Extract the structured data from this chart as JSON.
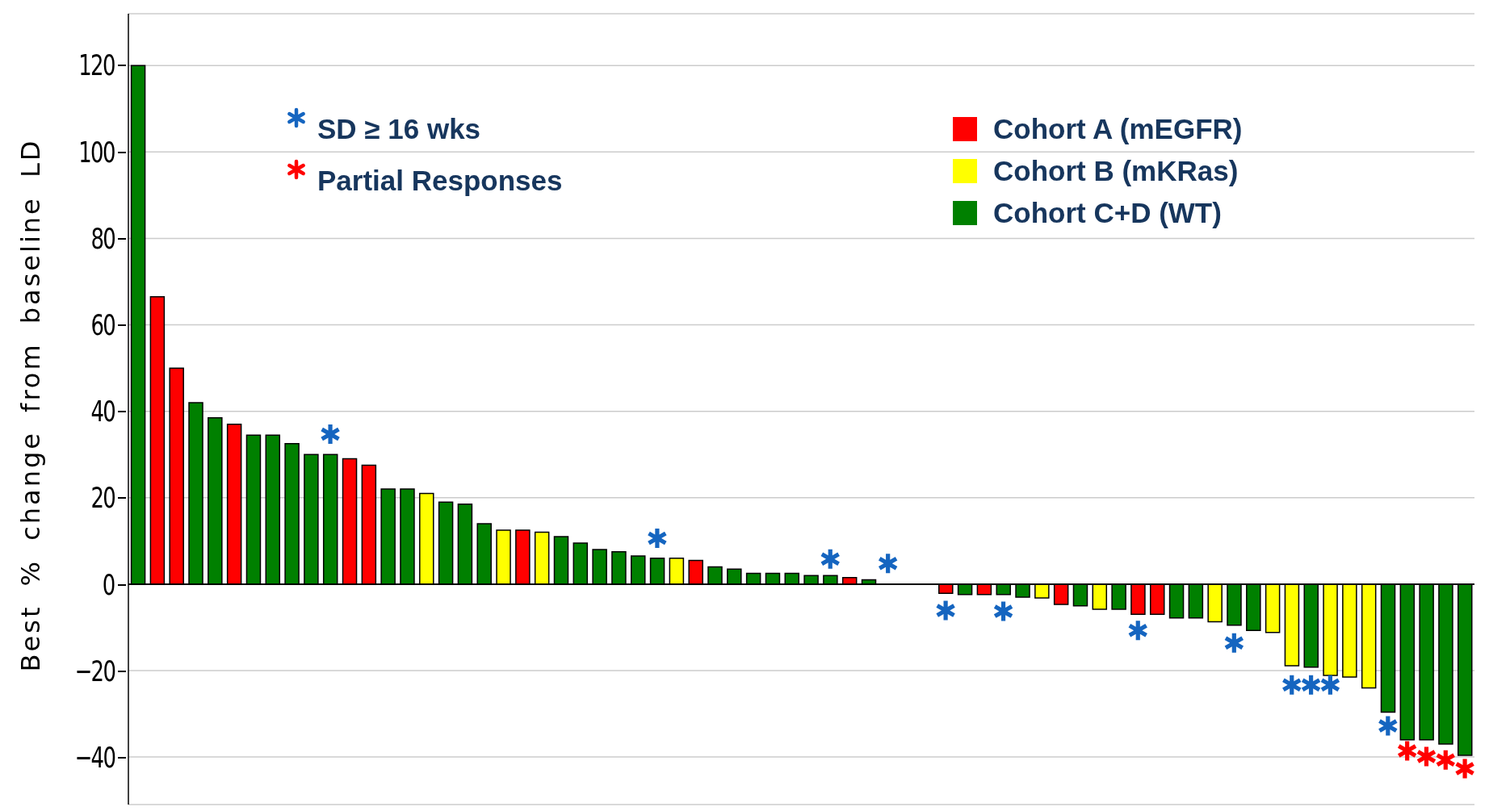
{
  "chart_data": {
    "type": "bar",
    "ylabel": "Best % change from baseline LD",
    "stacked": true,
    "grid": "y",
    "legend": "top right",
    "tick_labels": "y",
    "marker": "cross",
    "ylim": [
      -51,
      132
    ],
    "yticks": [
      -40,
      -20,
      0,
      20,
      40,
      60,
      80,
      100,
      120
    ],
    "categories": [
      null,
      null,
      null,
      null,
      null,
      null,
      null,
      null,
      null,
      null,
      null,
      null,
      null,
      null,
      null,
      null,
      null,
      null,
      null,
      null,
      null,
      null,
      null,
      null,
      null,
      null,
      null,
      null,
      null,
      null,
      null,
      null,
      null,
      null,
      null,
      null,
      null,
      null,
      null,
      null,
      null,
      null,
      null,
      null,
      null,
      null,
      null,
      null,
      null,
      null,
      null,
      null,
      null,
      null,
      null,
      null,
      null,
      null,
      null,
      null,
      null,
      null,
      null,
      null,
      null,
      null,
      null,
      null,
      null,
      null
    ],
    "series": [
      {
        "name": "Cohort A (mEGFR)",
        "color": "#ff0000",
        "values": [
          null,
          66.5,
          50,
          null,
          null,
          37,
          null,
          null,
          null,
          null,
          null,
          29,
          27.5,
          null,
          null,
          null,
          null,
          null,
          null,
          null,
          12.5,
          null,
          null,
          null,
          null,
          null,
          null,
          null,
          null,
          5.5,
          null,
          null,
          null,
          null,
          null,
          null,
          null,
          1.5,
          null,
          null,
          null,
          null,
          -2.1,
          null,
          -2.4,
          null,
          null,
          null,
          -4.7,
          null,
          null,
          null,
          -7,
          -7,
          null,
          null,
          null,
          null,
          null,
          null,
          null,
          null,
          null,
          null,
          null,
          null,
          null,
          null,
          null,
          null
        ]
      },
      {
        "name": "Cohort B (mKRas)",
        "color": "#ffff00",
        "values": [
          null,
          null,
          null,
          null,
          null,
          null,
          null,
          null,
          null,
          null,
          null,
          null,
          null,
          null,
          null,
          21,
          null,
          null,
          null,
          12.5,
          null,
          12,
          null,
          null,
          null,
          null,
          null,
          null,
          6,
          null,
          null,
          null,
          null,
          null,
          null,
          null,
          null,
          null,
          null,
          null,
          null,
          null,
          null,
          null,
          null,
          null,
          null,
          -3.2,
          null,
          null,
          -5.8,
          null,
          null,
          null,
          null,
          null,
          -8.7,
          null,
          null,
          -11.2,
          -18.9,
          null,
          -21.1,
          -21.5,
          -24,
          null,
          null,
          null,
          null,
          null
        ]
      },
      {
        "name": "Cohort C+D (WT)",
        "color": "#008000",
        "values": [
          120,
          null,
          null,
          42,
          38.5,
          null,
          34.5,
          34.5,
          32.5,
          30,
          30,
          null,
          null,
          22,
          22,
          null,
          19,
          18.5,
          14,
          null,
          null,
          null,
          11,
          9.5,
          8,
          7.5,
          6.5,
          6,
          null,
          null,
          4,
          3.5,
          2.5,
          2.5,
          2.5,
          2,
          2,
          null,
          1,
          null,
          null,
          null,
          null,
          -2.4,
          null,
          -2.4,
          -3,
          null,
          null,
          -5,
          null,
          -5.8,
          null,
          null,
          -7.8,
          -7.8,
          null,
          -9.5,
          -10.7,
          null,
          null,
          -19.2,
          null,
          null,
          null,
          -29.6,
          -36,
          -36,
          -37,
          -39.6
        ]
      },
      {
        "name": "SD ≥ 16 wks",
        "type": "scatter",
        "color": "#1565c0",
        "values": [
          null,
          null,
          null,
          null,
          null,
          null,
          null,
          null,
          null,
          null,
          34.7,
          null,
          null,
          null,
          null,
          null,
          null,
          null,
          null,
          null,
          null,
          null,
          null,
          null,
          null,
          null,
          null,
          10.6,
          null,
          null,
          null,
          null,
          null,
          null,
          null,
          null,
          5.8,
          null,
          null,
          4.8,
          null,
          null,
          -6.1,
          null,
          null,
          -6.3,
          null,
          null,
          null,
          null,
          null,
          null,
          -10.7,
          null,
          null,
          null,
          null,
          -13.6,
          null,
          null,
          -23.3,
          -23.3,
          -23.3,
          null,
          null,
          -32.8,
          null,
          null,
          null,
          null
        ]
      },
      {
        "name": "Partial Responses",
        "type": "scatter",
        "color": "#ff0000",
        "values": [
          null,
          null,
          null,
          null,
          null,
          null,
          null,
          null,
          null,
          null,
          null,
          null,
          null,
          null,
          null,
          null,
          null,
          null,
          null,
          null,
          null,
          null,
          null,
          null,
          null,
          null,
          null,
          null,
          null,
          null,
          null,
          null,
          null,
          null,
          null,
          null,
          null,
          null,
          null,
          null,
          null,
          null,
          null,
          null,
          null,
          null,
          null,
          null,
          null,
          null,
          null,
          null,
          null,
          null,
          null,
          null,
          null,
          null,
          null,
          null,
          null,
          null,
          null,
          null,
          null,
          null,
          -38.6,
          -39.9,
          -40.7,
          -42.7
        ]
      }
    ]
  }
}
